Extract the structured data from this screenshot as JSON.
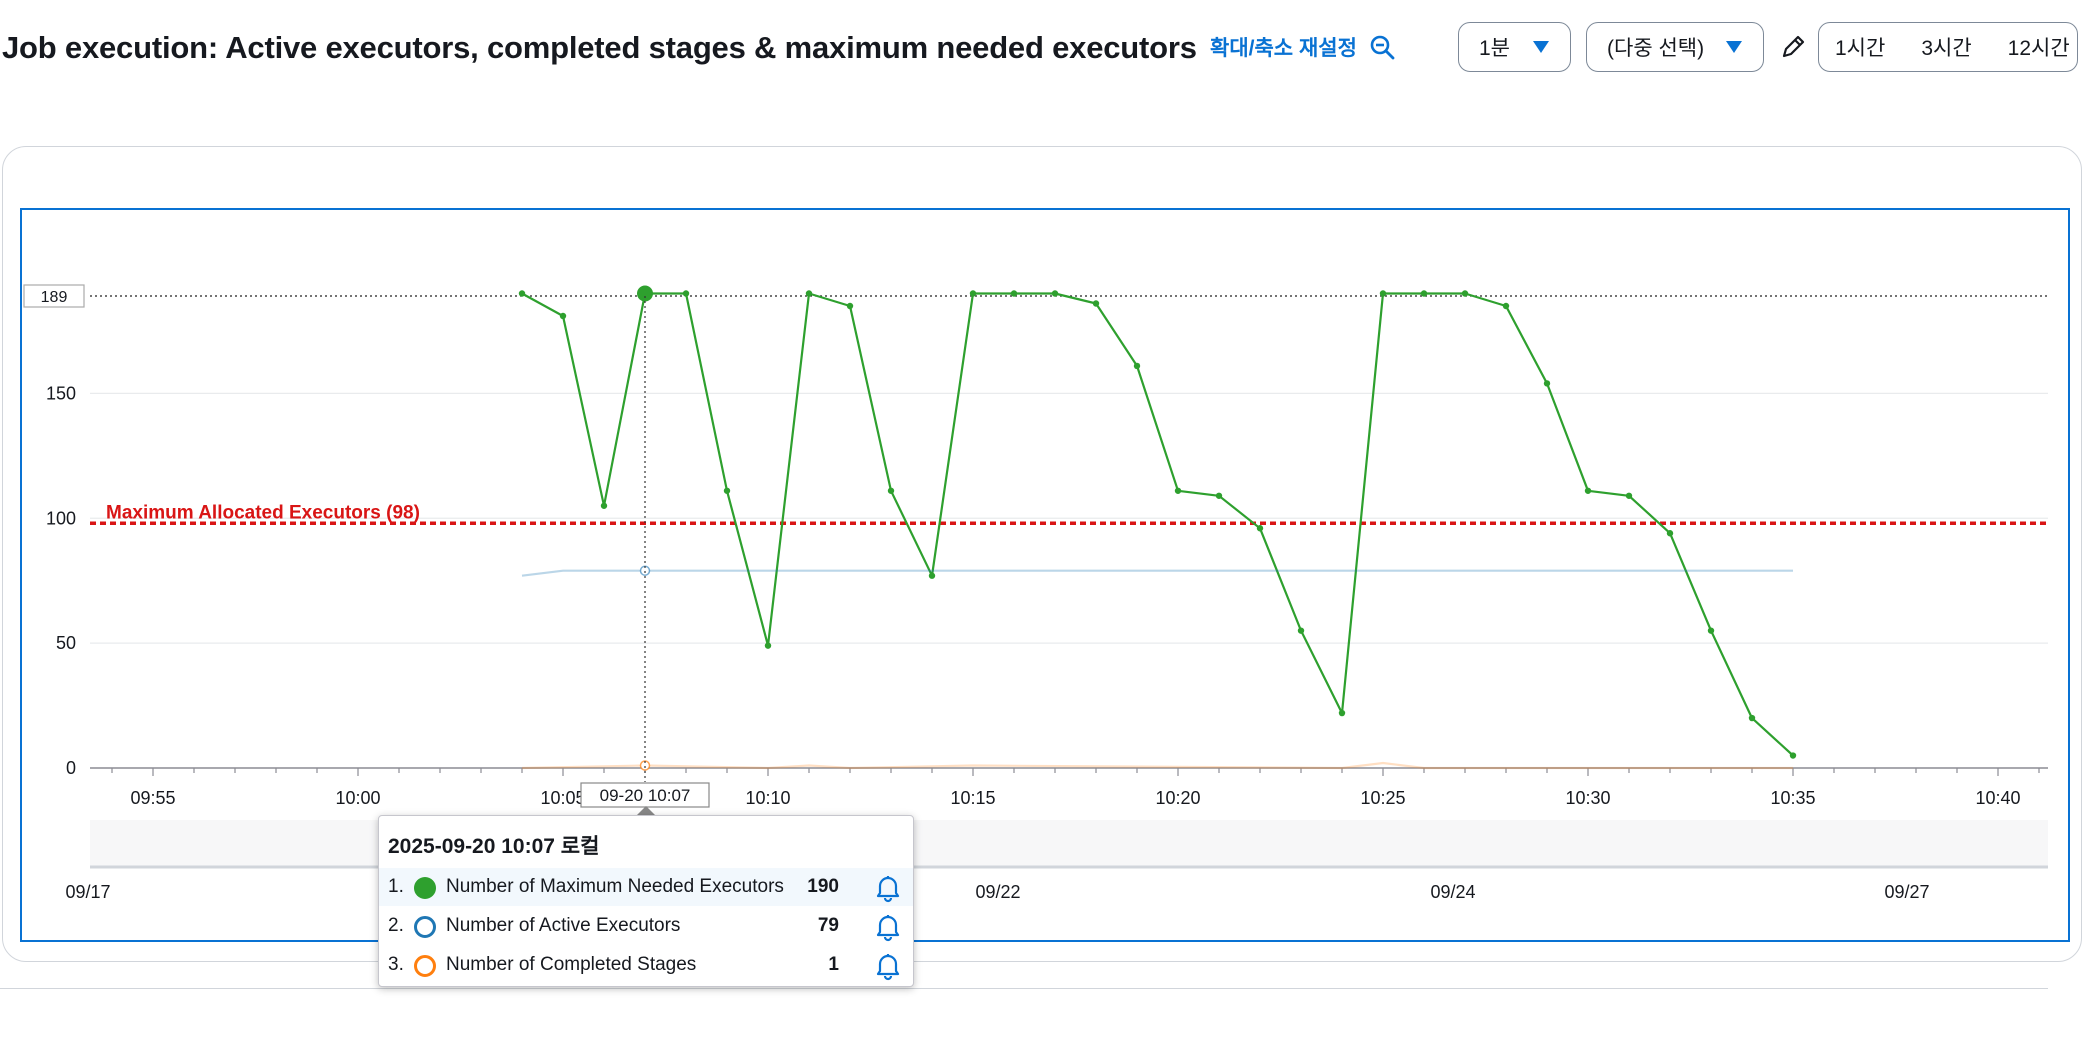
{
  "header": {
    "title": "Job execution: Active executors, completed stages & maximum needed executors",
    "zoom_reset": "확대/축소 재설정",
    "period": "1분",
    "statistic": "(다중 선택)",
    "time_ranges": [
      "1시간",
      "3시간",
      "12시간"
    ]
  },
  "chart_data": {
    "type": "line",
    "y_ticks": [
      0,
      50,
      100,
      150
    ],
    "y_highlight_tick": "189",
    "ylim": [
      0,
      189
    ],
    "x_ticks": [
      "09:55",
      "10:00",
      "10:05",
      "10:10",
      "10:15",
      "10:20",
      "10:25",
      "10:30",
      "10:35",
      "10:40"
    ],
    "hover_x_label": "09-20 10:07",
    "threshold": {
      "label": "Maximum Allocated Executors (98)",
      "value": 98,
      "color": "#d91515"
    },
    "navigator_labels": [
      "09/17",
      "09/22",
      "09/24",
      "09/27"
    ],
    "grid": true,
    "series": [
      {
        "name": "Number of Maximum Needed Executors",
        "color": "#2ea02e",
        "x": [
          "10:04",
          "10:05",
          "10:06",
          "10:07",
          "10:08",
          "10:09",
          "10:10",
          "10:11",
          "10:12",
          "10:13",
          "10:14",
          "10:15",
          "10:16",
          "10:17",
          "10:18",
          "10:19",
          "10:20",
          "10:21",
          "10:22",
          "10:23",
          "10:24",
          "10:25",
          "10:26",
          "10:27",
          "10:28",
          "10:29",
          "10:30",
          "10:31",
          "10:32",
          "10:33",
          "10:34",
          "10:35"
        ],
        "values": [
          190,
          181,
          105,
          190,
          190,
          111,
          49,
          190,
          185,
          111,
          77,
          190,
          190,
          190,
          186,
          161,
          111,
          109,
          96,
          55,
          22,
          190,
          190,
          190,
          185,
          154,
          111,
          109,
          94,
          55,
          20,
          5
        ]
      },
      {
        "name": "Number of Active Executors",
        "color": "#1f77b4",
        "x": [
          "10:04",
          "10:05",
          "10:06",
          "10:07",
          "10:35"
        ],
        "values": [
          77,
          79,
          79,
          79,
          79
        ]
      },
      {
        "name": "Number of Completed Stages",
        "color": "#ff7f0e",
        "x": [
          "10:04",
          "10:07",
          "10:10",
          "10:11",
          "10:12",
          "10:15",
          "10:24",
          "10:25",
          "10:26",
          "10:35"
        ],
        "values": [
          0,
          1,
          0,
          1,
          0,
          1,
          0,
          2,
          0,
          0
        ]
      }
    ]
  },
  "tooltip": {
    "title": "2025-09-20 10:07 로컬",
    "rows": [
      {
        "index": "1.",
        "label": "Number of Maximum Needed Executors",
        "value": "190",
        "color": "#2ea02e"
      },
      {
        "index": "2.",
        "label": "Number of Active Executors",
        "value": "79",
        "color": "#1f77b4"
      },
      {
        "index": "3.",
        "label": "Number of Completed Stages",
        "value": "1",
        "color": "#ff7f0e"
      }
    ]
  }
}
